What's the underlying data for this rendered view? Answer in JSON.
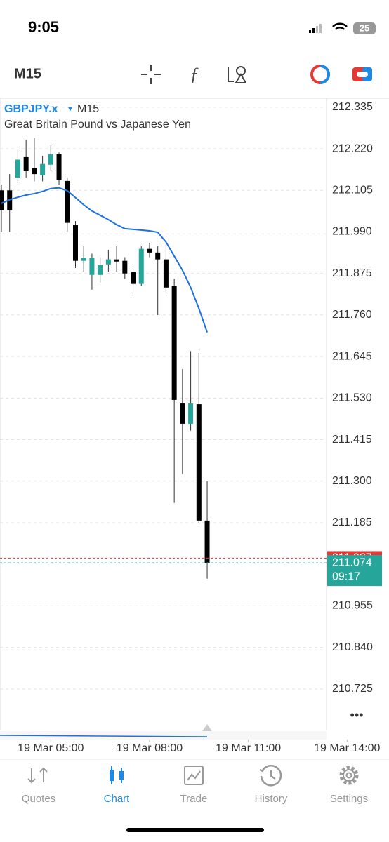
{
  "status_bar": {
    "time": "9:05",
    "battery": "25"
  },
  "toolbar": {
    "timeframe": "M15"
  },
  "chart_data": {
    "type": "candlestick",
    "symbol": "GBPJPY.x",
    "timeframe": "M15",
    "description": "Great Britain Pound vs Japanese Yen",
    "open": [
      212.105,
      212.105,
      212.14,
      212.197,
      212.166,
      212.147,
      212.176,
      212.205,
      212.131,
      212.01,
      211.91,
      211.871,
      211.871,
      211.9,
      211.914,
      211.91,
      211.879,
      211.846,
      211.943,
      211.933,
      211.914,
      211.84,
      211.515,
      211.459,
      211.513,
      211.191
    ],
    "high": [
      212.12,
      212.15,
      212.22,
      212.245,
      212.25,
      212.2,
      212.23,
      212.21,
      212.14,
      212.02,
      211.95,
      211.93,
      211.92,
      211.94,
      211.95,
      211.92,
      211.9,
      211.95,
      211.96,
      211.95,
      211.96,
      211.86,
      211.61,
      211.66,
      211.655,
      211.3
    ],
    "low": [
      211.99,
      211.99,
      212.125,
      212.14,
      212.13,
      212.13,
      212.16,
      212.12,
      211.99,
      211.89,
      211.88,
      211.83,
      211.85,
      211.88,
      211.88,
      211.86,
      211.82,
      211.84,
      211.92,
      211.76,
      211.82,
      211.24,
      211.32,
      211.44,
      211.185,
      211.03
    ],
    "close": [
      212.05,
      212.05,
      212.19,
      212.158,
      212.15,
      212.178,
      212.205,
      212.133,
      212.015,
      211.91,
      211.918,
      211.918,
      211.898,
      211.914,
      211.908,
      211.875,
      211.846,
      211.943,
      211.933,
      211.914,
      211.836,
      211.525,
      211.459,
      211.515,
      211.191,
      211.074
    ],
    "ma": {
      "color": "#1e6fe0",
      "values": [
        212.069,
        212.079,
        212.086,
        212.092,
        212.096,
        212.102,
        212.11,
        212.112,
        212.104,
        212.085,
        212.065,
        212.048,
        212.036,
        212.024,
        212.01,
        211.999,
        211.997,
        211.995,
        211.993,
        211.989,
        211.962,
        211.923,
        211.884,
        211.836,
        211.778,
        211.712
      ]
    },
    "up_color": "#26a69a",
    "down_color": "#000000",
    "ylim": [
      210.612,
      212.36
    ],
    "yticks": [
      212.335,
      {
        "value": 212.22,
        "label": "212.220"
      },
      212.105,
      {
        "value": 211.99,
        "label": "211.990"
      },
      211.875,
      {
        "value": 211.76,
        "label": "211.760"
      },
      211.645,
      {
        "value": 211.53,
        "label": "211.530"
      },
      211.415,
      {
        "value": 211.3,
        "label": "211.300"
      },
      211.185,
      210.955,
      {
        "value": 210.84,
        "label": "210.840"
      },
      210.725
    ],
    "xlim": [
      -0.17,
      39.5
    ],
    "xticks": [
      {
        "value": 6,
        "label": "19 Mar 05:00"
      },
      {
        "value": 18,
        "label": "19 Mar 08:00"
      },
      {
        "value": 30,
        "label": "19 Mar 11:00"
      },
      {
        "value": 42,
        "label": "19 Mar 14:00"
      }
    ],
    "bid": 211.074,
    "ask": 211.087,
    "countdown": "09:17"
  },
  "tabs": [
    "Quotes",
    "Chart",
    "Trade",
    "History",
    "Settings"
  ]
}
